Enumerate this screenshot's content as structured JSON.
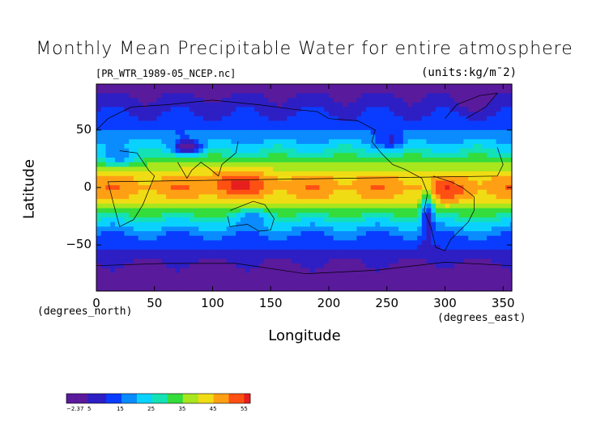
{
  "chart_data": {
    "type": "heatmap",
    "title": "Monthly Mean Precipitable Water for entire atmosphere",
    "subtitle_left": "[PR_WTR_1989-05_NCEP.nc]",
    "subtitle_right": "(units:kg/m¯2)",
    "xlabel": "Longitude",
    "ylabel": "Latitude",
    "x_units": "(degrees_east)",
    "y_units": "(degrees_north)",
    "xlim": [
      0,
      357.5
    ],
    "ylim": [
      -90,
      90
    ],
    "x_ticks": [
      0,
      50,
      100,
      150,
      200,
      250,
      300,
      350
    ],
    "y_ticks": [
      50,
      0,
      -50
    ],
    "y_tick_labels": [
      "50",
      "0",
      "−50"
    ],
    "colorbar": {
      "min": -2.37,
      "max": 57,
      "tick_values": [
        -2.37,
        5,
        15,
        25,
        35,
        45,
        55
      ],
      "tick_labels": [
        "−2.37",
        "5",
        "15",
        "25",
        "35",
        "45",
        "55"
      ]
    },
    "levels": [
      0,
      5,
      10,
      15,
      20,
      25,
      30,
      35,
      40,
      45,
      50,
      55
    ],
    "level_colors": [
      "#5a1a9c",
      "#2d1fc4",
      "#0a3cff",
      "#0a8cff",
      "#0ad2ff",
      "#14e1b4",
      "#34dc3c",
      "#a8e61e",
      "#f0dc14",
      "#ffa014",
      "#ff5014",
      "#e61e1e"
    ],
    "zonal_profile": {
      "latitudes": [
        90,
        80,
        70,
        60,
        50,
        40,
        30,
        20,
        10,
        0,
        -10,
        -20,
        -30,
        -40,
        -50,
        -60,
        -70,
        -80,
        -90
      ],
      "values": [
        3,
        5,
        8,
        11,
        15,
        20,
        27,
        36,
        45,
        48,
        44,
        34,
        24,
        16,
        11,
        7,
        3,
        1,
        0
      ]
    }
  }
}
